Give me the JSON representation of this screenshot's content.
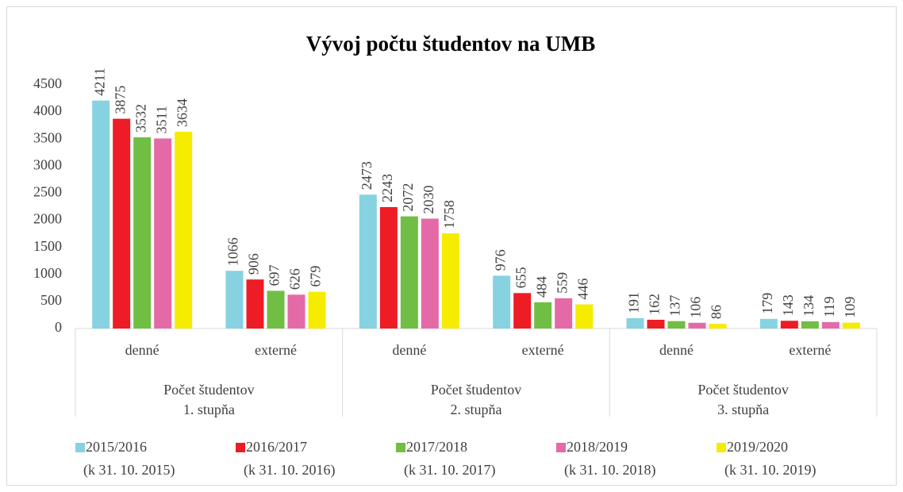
{
  "chart_data": {
    "type": "bar",
    "title": "Vývoj počtu študentov na UMB",
    "categories": [
      "denné",
      "externé",
      "denné",
      "externé",
      "denné",
      "externé"
    ],
    "category_groups": [
      [
        "Počet študentov",
        "1. stupňa"
      ],
      [
        "Počet študentov",
        "2. stupňa"
      ],
      [
        "Počet študentov",
        "3. stupňa"
      ]
    ],
    "series": [
      {
        "name": [
          "2015/2016",
          "(k 31. 10. 2015)"
        ],
        "color": "#86d2e1",
        "values": [
          4211,
          1066,
          2473,
          976,
          191,
          179
        ]
      },
      {
        "name": [
          "2016/2017",
          "(k 31. 10. 2016)"
        ],
        "color": "#ee1c24",
        "values": [
          3875,
          906,
          2243,
          655,
          162,
          143
        ]
      },
      {
        "name": [
          "2017/2018",
          "(k 31. 10. 2017)"
        ],
        "color": "#70bf44",
        "values": [
          3532,
          697,
          2072,
          484,
          137,
          134
        ]
      },
      {
        "name": [
          "2018/2019",
          "(k 31. 10. 2018)"
        ],
        "color": "#e46aa7",
        "values": [
          3511,
          626,
          2030,
          559,
          106,
          119
        ]
      },
      {
        "name": [
          "2019/2020",
          "(k 31. 10. 2019)"
        ],
        "color": "#f5ec00",
        "values": [
          3634,
          679,
          1758,
          446,
          86,
          109
        ]
      }
    ],
    "ylim": [
      0,
      4500
    ],
    "yticks": [
      0,
      500,
      1000,
      1500,
      2000,
      2500,
      3000,
      3500,
      4000,
      4500
    ],
    "grid": false,
    "legend": "bottom"
  }
}
